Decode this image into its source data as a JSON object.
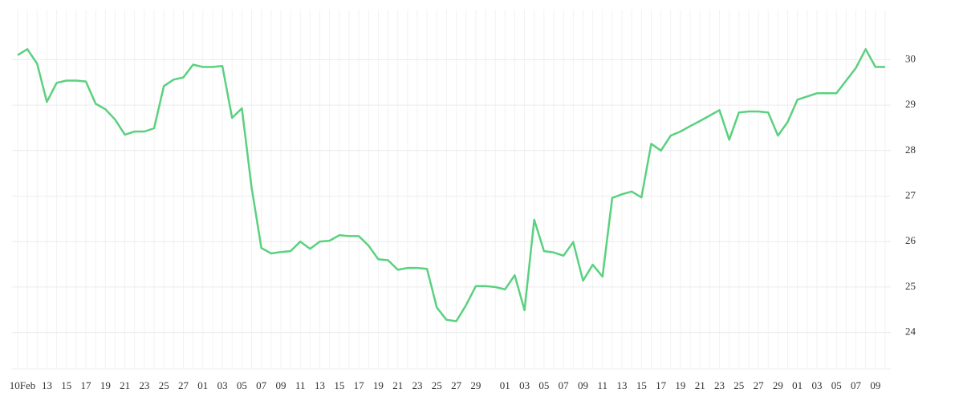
{
  "chart_data": {
    "type": "line",
    "categories": [
      "10Feb",
      null,
      null,
      "13",
      null,
      "15",
      null,
      "17",
      null,
      "19",
      null,
      "21",
      null,
      "23",
      null,
      "25",
      null,
      "27",
      null,
      "01",
      null,
      "03",
      null,
      "05",
      null,
      "07",
      null,
      "09",
      null,
      "11",
      null,
      "13",
      null,
      "15",
      null,
      "17",
      null,
      "19",
      null,
      "21",
      null,
      "23",
      null,
      "25",
      null,
      "27",
      null,
      "29",
      null,
      null,
      "01",
      null,
      "03",
      null,
      "05",
      null,
      "07",
      null,
      "09",
      null,
      "11",
      null,
      "13",
      null,
      "15",
      null,
      "17",
      null,
      "19",
      null,
      "21",
      null,
      "23",
      null,
      "25",
      null,
      "27",
      null,
      "29",
      null,
      "01",
      null,
      "03",
      null,
      "05",
      null,
      "07",
      null,
      "09",
      null
    ],
    "values": [
      30.1,
      30.23,
      29.91,
      29.07,
      29.49,
      29.54,
      29.54,
      29.52,
      29.03,
      28.91,
      28.68,
      28.35,
      28.42,
      28.42,
      28.49,
      29.42,
      29.56,
      29.61,
      29.89,
      29.84,
      29.84,
      29.86,
      28.72,
      28.93,
      27.19,
      25.86,
      25.74,
      25.77,
      25.79,
      26.0,
      25.84,
      26.0,
      26.02,
      26.14,
      26.12,
      26.12,
      25.91,
      25.61,
      25.59,
      25.38,
      25.42,
      25.42,
      25.4,
      24.55,
      24.28,
      24.25,
      24.6,
      25.02,
      25.02,
      25.0,
      24.95,
      25.26,
      24.49,
      26.48,
      25.79,
      25.76,
      25.69,
      25.99,
      25.14,
      25.49,
      25.23,
      26.96,
      27.04,
      27.1,
      26.97,
      28.15,
      28.0,
      28.33,
      28.42,
      28.54,
      28.65,
      28.77,
      28.89,
      28.24,
      28.84,
      28.86,
      28.86,
      28.84,
      28.33,
      28.63,
      29.12,
      29.19,
      29.26,
      29.26,
      29.26,
      29.54,
      29.82,
      30.23,
      29.84,
      29.84
    ],
    "color": "#5ad17f",
    "ylim": [
      23.2,
      31.1
    ],
    "yticks": [
      24,
      25,
      26,
      27,
      28,
      29,
      30
    ],
    "grid": true,
    "y_axis_side": "right"
  }
}
